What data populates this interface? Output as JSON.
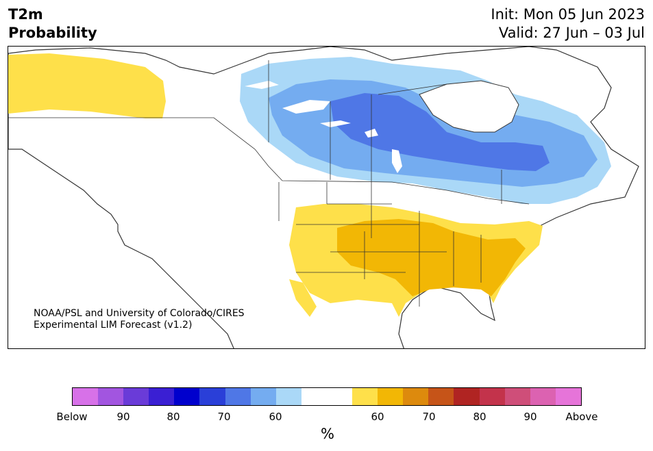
{
  "title": {
    "variable": "T2m",
    "metric": "Probability",
    "init": "Init: Mon 05 Jun 2023",
    "valid": "Valid: 27 Jun – 03 Jul"
  },
  "credit": {
    "line1": "NOAA/PSL and University of Colorado/CIRES",
    "line2": "Experimental LIM Forecast (v1.2)"
  },
  "colorbar": {
    "unit": "%",
    "colors": [
      "#d771e8",
      "#a255e0",
      "#6a3bd8",
      "#3a1fd3",
      "#0000cd",
      "#2a3fd8",
      "#4f77e6",
      "#74acf0",
      "#aad8f7",
      "#ffffff",
      "#ffffff",
      "#fee04a",
      "#f2b705",
      "#dd8a0d",
      "#c65418",
      "#b02422",
      "#c3334b",
      "#cf4e79",
      "#dc62b1",
      "#e674d9"
    ],
    "tick_labels": [
      "Below",
      "90",
      "80",
      "70",
      "60",
      "60",
      "70",
      "80",
      "90",
      "Above"
    ]
  },
  "map": {
    "regions": "North America",
    "shading": {
      "below_light": "#aad8f7",
      "below_mid": "#74acf0",
      "below_strong": "#4f77e6",
      "above_light": "#fee04a",
      "above_mid": "#f2b705"
    }
  }
}
